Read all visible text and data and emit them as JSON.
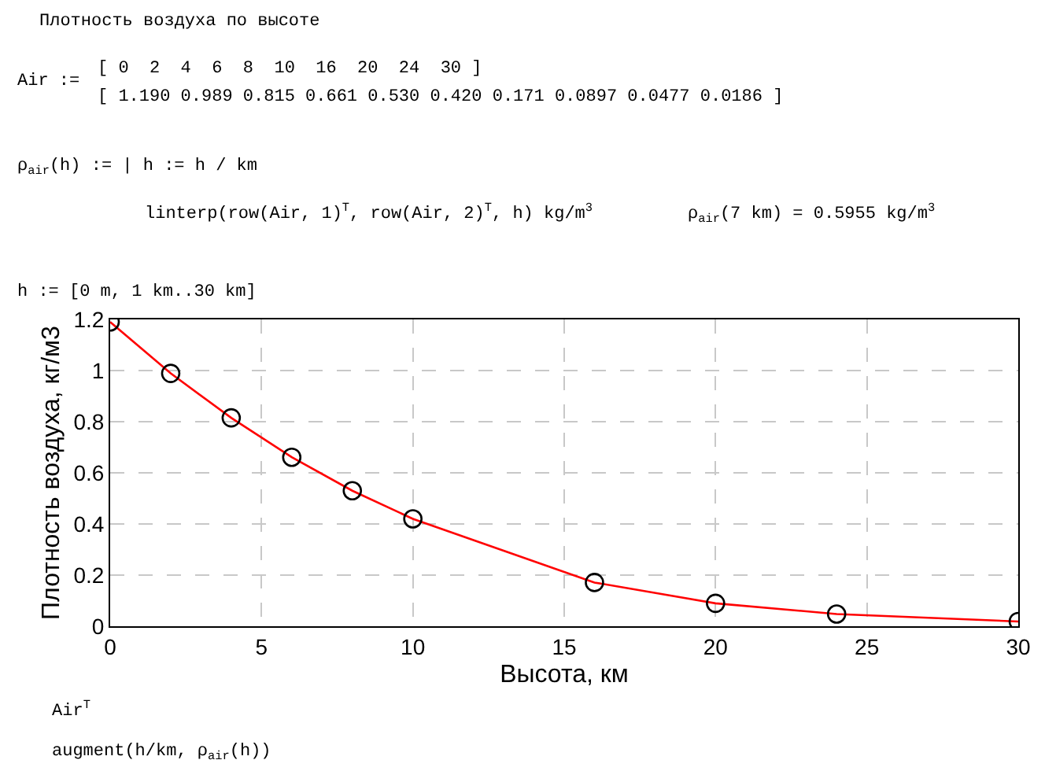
{
  "chart_data": {
    "type": "line",
    "title": "Плотность воздуха по высоте",
    "xlabel": "Высота, км",
    "ylabel": "Плотность воздуха, кг/м3",
    "x": [
      0,
      2,
      4,
      6,
      8,
      10,
      16,
      20,
      24,
      30
    ],
    "series": [
      {
        "color": "#ff0000",
        "marker": "none",
        "values": [
          1.19,
          0.989,
          0.815,
          0.661,
          0.53,
          0.42,
          0.171,
          0.0897,
          0.0477,
          0.0186
        ]
      },
      {
        "color": "#000000",
        "type": "scatter",
        "marker": "circle",
        "values": [
          1.19,
          0.989,
          0.815,
          0.661,
          0.53,
          0.42,
          0.171,
          0.0897,
          0.0477,
          0.0186
        ]
      }
    ],
    "xlim": [
      0,
      30
    ],
    "xticks": [
      0,
      5,
      10,
      15,
      20,
      25,
      30
    ],
    "ylim": [
      0,
      1.2
    ],
    "yticks": [
      0,
      0.2,
      0.4,
      0.6,
      0.8,
      1,
      1.2
    ],
    "grid": true,
    "annotations": [
      "Air :=",
      "[ 0  2  4  6  8  10  16  20  24  30 ]",
      "[ 1.190 0.989 0.815 0.661 0.530 0.420 0.171 0.0897 0.0477 0.0186 ]",
      "ρ$_{air}$(h) := | h := h / km",
      "linterp(row(Air, 1)$^{T}$, row(Air, 2)$^{T}$, h) kg/m$^{3}$",
      "ρ$_{air}$(7 km) = 0.5955 kg/m$^{3}$",
      "h := [0 m, 1 km..30 km]",
      "Air$^{T}$",
      "augment(h/km, ρ$_{air}$(h))"
    ]
  }
}
